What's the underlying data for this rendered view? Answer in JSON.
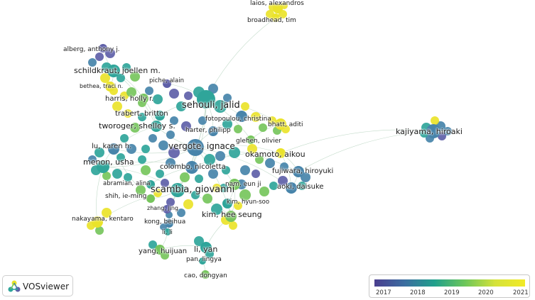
{
  "colors": {
    "y2017": "#5e5fa8",
    "y2018": "#4784aa",
    "y2019": "#2fa59a",
    "y2020": "#76c55c",
    "y2021": "#eae32a",
    "edge": "#a9ccb4"
  },
  "app": {
    "logo_text": "VOSviewer",
    "logo_icon": "vosviewer-logo-icon"
  },
  "legend": {
    "ticks": [
      "2017",
      "2018",
      "2019",
      "2020",
      "2021"
    ]
  },
  "authors": [
    {
      "id": "laios",
      "label": "laios, alexandros",
      "year": 2021
    },
    {
      "id": "broadhead",
      "label": "broadhead, tim",
      "year": 2021
    },
    {
      "id": "alberg",
      "label": "alberg, anthony j.",
      "year": 2017
    },
    {
      "id": "schildkraut",
      "label": "schildkraut, joellen m.",
      "year": 2019
    },
    {
      "id": "piche",
      "label": "piche, alain",
      "year": 2017
    },
    {
      "id": "bethea",
      "label": "bethea, traci n.",
      "year": 2021
    },
    {
      "id": "harris",
      "label": "harris, holly r.",
      "year": 2020
    },
    {
      "id": "sehouli",
      "label": "sehouli, jalid",
      "year": 2019
    },
    {
      "id": "trabert",
      "label": "trabert, britton",
      "year": 2019
    },
    {
      "id": "fotopoulou",
      "label": "fotopoulou, christina",
      "year": 2018
    },
    {
      "id": "tworoger",
      "label": "tworoger, shelley s.",
      "year": 2019
    },
    {
      "id": "harter",
      "label": "harter, philipp",
      "year": 2018
    },
    {
      "id": "bhatt",
      "label": "bhatt, aditi",
      "year": 2021
    },
    {
      "id": "glehen",
      "label": "glehen, olivier",
      "year": 2020
    },
    {
      "id": "kajiyama",
      "label": "kajiyama, hiroaki",
      "year": 2018
    },
    {
      "id": "vergote",
      "label": "vergote, ignace",
      "year": 2018
    },
    {
      "id": "lukaren",
      "label": "lu, karen h.",
      "year": 2018
    },
    {
      "id": "okamoto",
      "label": "okamoto, aikou",
      "year": 2021
    },
    {
      "id": "menon",
      "label": "menon, usha",
      "year": 2019
    },
    {
      "id": "colombo",
      "label": "colombo, nicoletta",
      "year": 2018
    },
    {
      "id": "fujiwara",
      "label": "fujiwara, hiroyuki",
      "year": 2018
    },
    {
      "id": "abramian",
      "label": "abramian, alina",
      "year": 2019
    },
    {
      "id": "nam",
      "label": "nam, eun ji",
      "year": 2020
    },
    {
      "id": "aoki",
      "label": "aoki, daisuke",
      "year": 2018
    },
    {
      "id": "scambia",
      "label": "scambia, giovanni",
      "year": 2019
    },
    {
      "id": "shih",
      "label": "shih, ie-ming",
      "year": 2020
    },
    {
      "id": "kimhyunsoo",
      "label": "kim, hyun-soo",
      "year": 2019
    },
    {
      "id": "zhangjing",
      "label": "zhang, jing",
      "year": 2017
    },
    {
      "id": "kimheeseung",
      "label": "kim, hee seung",
      "year": 2020
    },
    {
      "id": "nakayama",
      "label": "nakayama, kentaro",
      "year": 2021
    },
    {
      "id": "kongbeihua",
      "label": "kong, beihua",
      "year": 2018
    },
    {
      "id": "lili",
      "label": "li, li",
      "year": 2019
    },
    {
      "id": "yanghuijuan",
      "label": "yang, huijuan",
      "year": 2020
    },
    {
      "id": "liyan",
      "label": "li, yan",
      "year": 2019
    },
    {
      "id": "panlingya",
      "label": "pan, lingya",
      "year": 2019
    },
    {
      "id": "caodongyan",
      "label": "cao, dongyan",
      "year": 2020
    }
  ]
}
